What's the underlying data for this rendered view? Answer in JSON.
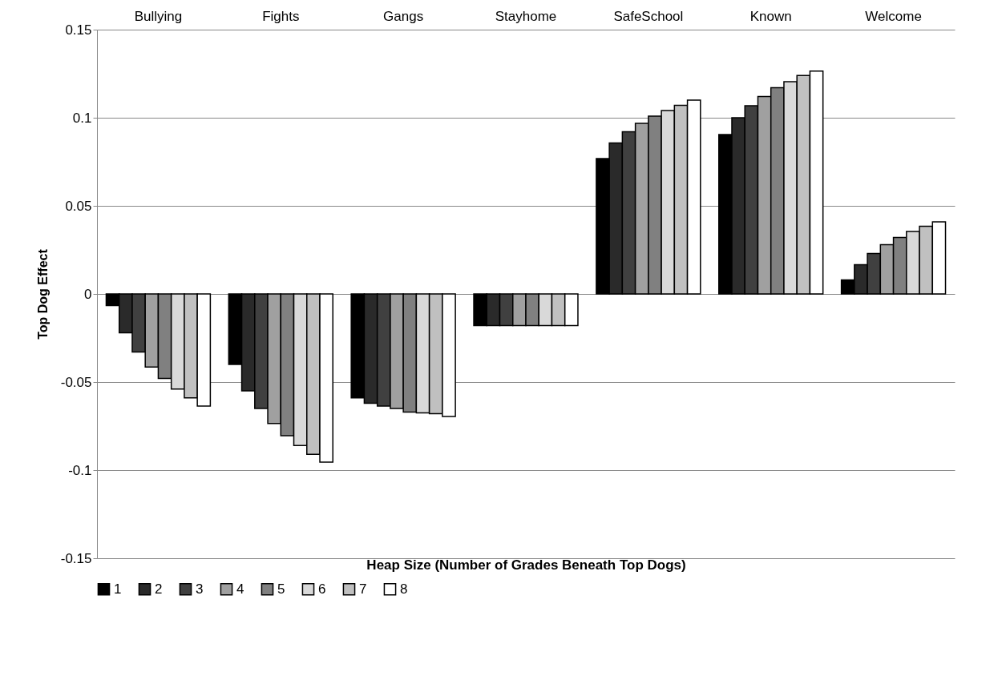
{
  "chart_data": {
    "type": "bar",
    "xlabel": "Heap Size (Number of Grades Beneath Top Dogs)",
    "ylabel": "Top Dog Effect",
    "categories": [
      "Bullying",
      "Fights",
      "Gangs",
      "Stayhome",
      "SafeSchool",
      "Known",
      "Welcome"
    ],
    "series": [
      {
        "name": "1",
        "color": "#000000",
        "values": [
          -0.0066,
          -0.04,
          -0.059,
          -0.018,
          0.0768,
          0.0904,
          0.0079
        ]
      },
      {
        "name": "2",
        "color": "#2a2a2a",
        "values": [
          -0.022,
          -0.055,
          -0.062,
          -0.018,
          0.0857,
          0.1,
          0.0166
        ]
      },
      {
        "name": "3",
        "color": "#404040",
        "values": [
          -0.033,
          -0.065,
          -0.0636,
          -0.018,
          0.092,
          0.1068,
          0.023
        ]
      },
      {
        "name": "4",
        "color": "#a0a0a0",
        "values": [
          -0.0415,
          -0.0735,
          -0.065,
          -0.018,
          0.0968,
          0.112,
          0.028
        ]
      },
      {
        "name": "5",
        "color": "#808080",
        "values": [
          -0.048,
          -0.0805,
          -0.067,
          -0.018,
          0.1009,
          0.117,
          0.032
        ]
      },
      {
        "name": "6",
        "color": "#d9d9d9",
        "values": [
          -0.054,
          -0.086,
          -0.0675,
          -0.018,
          0.1041,
          0.1205,
          0.0355
        ]
      },
      {
        "name": "7",
        "color": "#c0c0c0",
        "values": [
          -0.059,
          -0.091,
          -0.068,
          -0.018,
          0.1071,
          0.124,
          0.0384
        ]
      },
      {
        "name": "8",
        "color": "#ffffff",
        "values": [
          -0.0636,
          -0.0955,
          -0.0695,
          -0.018,
          0.11,
          0.1265,
          0.0409
        ]
      }
    ],
    "ylim": [
      -0.15,
      0.15
    ],
    "yticks": [
      -0.15,
      -0.1,
      -0.05,
      0,
      0.05,
      0.1,
      0.15
    ],
    "grid": "y",
    "legend": "bottom"
  }
}
